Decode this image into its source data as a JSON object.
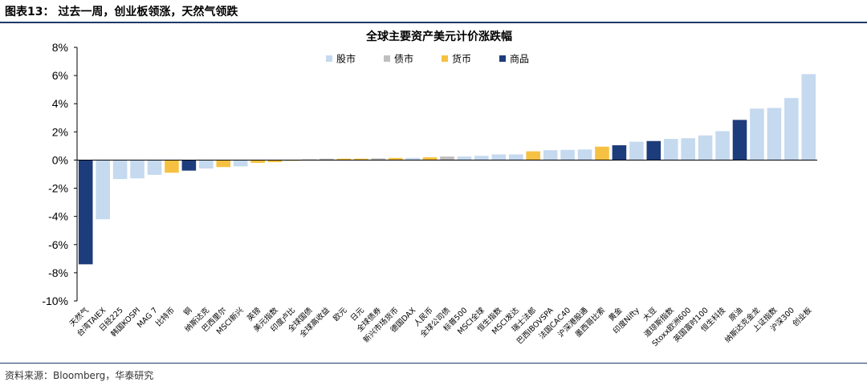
{
  "figure": {
    "title": "图表13：  过去一周，创业板领涨，天然气领跌",
    "source": "资料来源：Bloomberg，华泰研究"
  },
  "colors": {
    "股市": "#c5d9ef",
    "债市": "#bfbfbf",
    "货币": "#f6c142",
    "商品": "#1d3c7b"
  },
  "chart_data": {
    "type": "bar",
    "title": "全球主要资产美元计价涨跌幅",
    "ylim": [
      -10,
      8
    ],
    "yticks": [
      8,
      6,
      4,
      2,
      0,
      -2,
      -4,
      -6,
      -8,
      -10
    ],
    "ytick_labels": [
      "8%",
      "6%",
      "4%",
      "2%",
      "0%",
      "-2%",
      "-4%",
      "-6%",
      "-8%",
      "-10%"
    ],
    "grid": false,
    "legend_position": "top-center",
    "legend": [
      "股市",
      "债市",
      "货币",
      "商品"
    ],
    "categories": [
      "天然气",
      "台湾TAIEX",
      "日经225",
      "韩国KOSPI",
      "MAG 7",
      "比特币",
      "铜",
      "纳斯达克",
      "巴西里尔",
      "MSCI新兴",
      "英镑",
      "美元指数",
      "印度卢比",
      "全球国债",
      "全球高收益",
      "欧元",
      "日元",
      "全球债券",
      "新兴市场货币",
      "德国DAX",
      "人民币",
      "全球公司债",
      "标普500",
      "MSCI全球",
      "恒生指数",
      "MSCI发达",
      "瑞士法郎",
      "巴西IBOVSPA",
      "法国CAC40",
      "沪深港股通",
      "墨西哥比索",
      "黄金",
      "印度Nifty",
      "大豆",
      "道琼斯指数",
      "Stoxx欧洲600",
      "英国富时100",
      "恒生科技",
      "原油",
      "纳斯达克金龙",
      "上证指数",
      "沪深300",
      "创业板"
    ],
    "values": [
      -7.4,
      -4.2,
      -1.35,
      -1.3,
      -1.05,
      -0.9,
      -0.75,
      -0.6,
      -0.5,
      -0.45,
      -0.2,
      -0.15,
      -0.05,
      0.05,
      0.1,
      0.1,
      0.1,
      0.12,
      0.15,
      0.15,
      0.2,
      0.25,
      0.25,
      0.3,
      0.4,
      0.4,
      0.62,
      0.7,
      0.72,
      0.75,
      0.95,
      1.05,
      1.3,
      1.35,
      1.5,
      1.55,
      1.75,
      2.05,
      2.85,
      3.65,
      3.7,
      4.4,
      6.1
    ],
    "groups": [
      "商品",
      "股市",
      "股市",
      "股市",
      "股市",
      "货币",
      "商品",
      "股市",
      "货币",
      "股市",
      "货币",
      "货币",
      "货币",
      "债市",
      "债市",
      "货币",
      "货币",
      "债市",
      "货币",
      "股市",
      "货币",
      "债市",
      "股市",
      "股市",
      "股市",
      "股市",
      "货币",
      "股市",
      "股市",
      "股市",
      "货币",
      "商品",
      "股市",
      "商品",
      "股市",
      "股市",
      "股市",
      "股市",
      "商品",
      "股市",
      "股市",
      "股市",
      "股市"
    ]
  }
}
